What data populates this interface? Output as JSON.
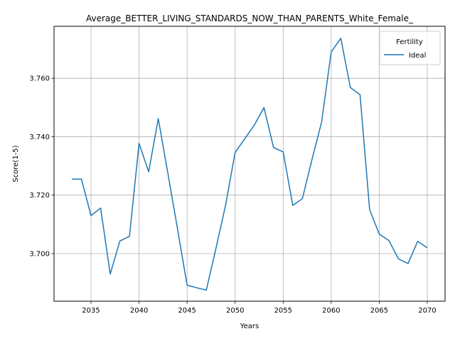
{
  "chart_data": {
    "type": "line",
    "title": "Average_BETTER_LIVING_STANDARDS_NOW_THAN_PARENTS_White_Female_",
    "xlabel": "Years",
    "ylabel": "Score(1-5)",
    "xlim": [
      2031.15,
      2071.85
    ],
    "ylim": [
      3.6837,
      3.7778
    ],
    "xticks": [
      2035,
      2040,
      2045,
      2050,
      2055,
      2060,
      2065,
      2070
    ],
    "yticks": [
      3.7,
      3.72,
      3.74,
      3.76
    ],
    "ytick_labels": [
      "3.700",
      "3.720",
      "3.740",
      "3.760"
    ],
    "grid": true,
    "legend": {
      "title": "Fertility",
      "position": "top-right"
    },
    "series": [
      {
        "name": "Ideal",
        "color": "#1f77b4",
        "x": [
          2033,
          2034,
          2035,
          2036,
          2037,
          2038,
          2039,
          2040,
          2041,
          2042,
          2043,
          2044,
          2045,
          2046,
          2047,
          2048,
          2049,
          2050,
          2051,
          2052,
          2053,
          2054,
          2055,
          2056,
          2057,
          2058,
          2059,
          2060,
          2061,
          2062,
          2063,
          2064,
          2065,
          2066,
          2067,
          2068,
          2069,
          2070
        ],
        "y": [
          3.7255,
          3.7255,
          3.713,
          3.7156,
          3.693,
          3.7043,
          3.7059,
          3.7377,
          3.728,
          3.7462,
          3.7275,
          3.7085,
          3.6892,
          3.6883,
          3.6875,
          3.7017,
          3.7165,
          3.7346,
          3.7393,
          3.744,
          3.75,
          3.7363,
          3.7348,
          3.7165,
          3.7188,
          3.7322,
          3.745,
          3.769,
          3.7737,
          3.7568,
          3.7544,
          3.715,
          3.7067,
          3.7045,
          3.6982,
          3.6966,
          3.7042,
          3.702
        ]
      }
    ]
  }
}
